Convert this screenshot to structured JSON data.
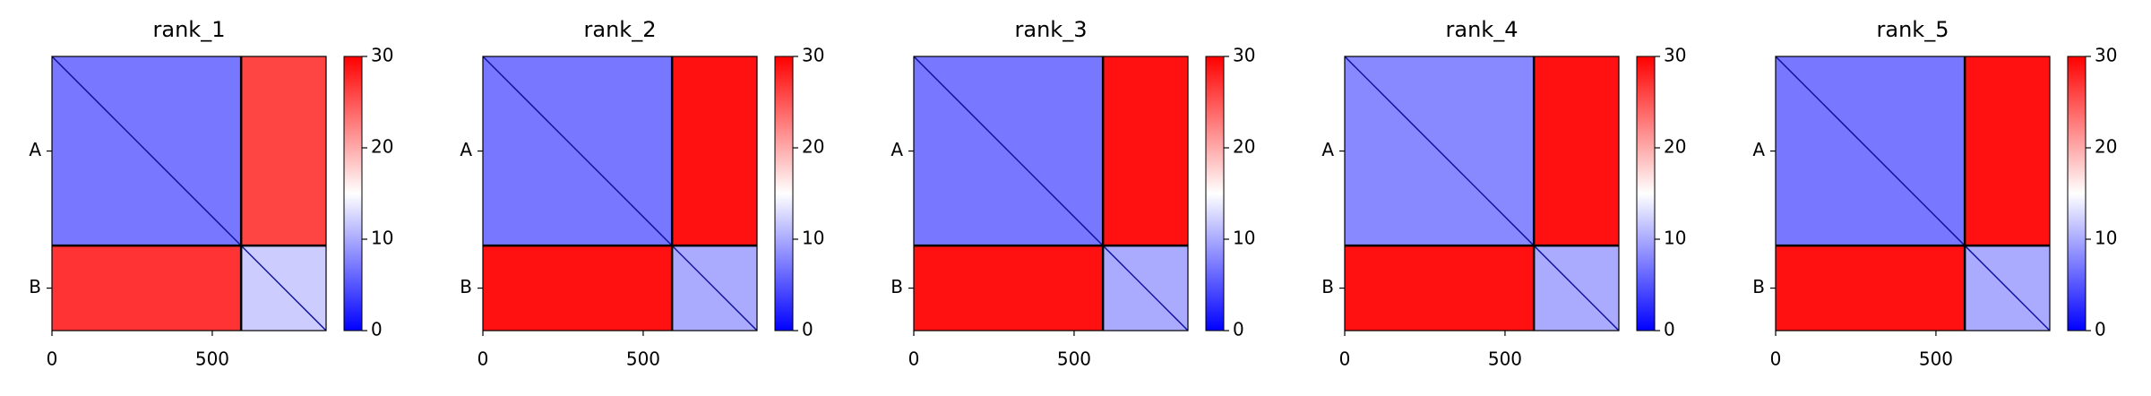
{
  "chart_data": [
    {
      "type": "heatmap",
      "title": "rank_1",
      "categories": [
        "A",
        "B"
      ],
      "bounds": [
        0,
        590,
        855
      ],
      "values": [
        [
          7,
          26
        ],
        [
          27,
          12
        ]
      ],
      "xlim": [
        0,
        855
      ],
      "xticks": [
        0,
        500
      ],
      "clim": [
        0,
        30
      ],
      "cticks": [
        0,
        10,
        20,
        30
      ],
      "colormap": "bwr"
    },
    {
      "type": "heatmap",
      "title": "rank_2",
      "categories": [
        "A",
        "B"
      ],
      "bounds": [
        0,
        590,
        855
      ],
      "values": [
        [
          7,
          29
        ],
        [
          29,
          10
        ]
      ],
      "xlim": [
        0,
        855
      ],
      "xticks": [
        0,
        500
      ],
      "clim": [
        0,
        30
      ],
      "cticks": [
        0,
        10,
        20,
        30
      ],
      "colormap": "bwr"
    },
    {
      "type": "heatmap",
      "title": "rank_3",
      "categories": [
        "A",
        "B"
      ],
      "bounds": [
        0,
        590,
        855
      ],
      "values": [
        [
          7,
          29
        ],
        [
          29,
          10
        ]
      ],
      "xlim": [
        0,
        855
      ],
      "xticks": [
        0,
        500
      ],
      "clim": [
        0,
        30
      ],
      "cticks": [
        0,
        10,
        20,
        30
      ],
      "colormap": "bwr"
    },
    {
      "type": "heatmap",
      "title": "rank_4",
      "categories": [
        "A",
        "B"
      ],
      "bounds": [
        0,
        590,
        855
      ],
      "values": [
        [
          8,
          29
        ],
        [
          29,
          10
        ]
      ],
      "xlim": [
        0,
        855
      ],
      "xticks": [
        0,
        500
      ],
      "clim": [
        0,
        30
      ],
      "cticks": [
        0,
        10,
        20,
        30
      ],
      "colormap": "bwr"
    },
    {
      "type": "heatmap",
      "title": "rank_5",
      "categories": [
        "A",
        "B"
      ],
      "bounds": [
        0,
        590,
        855
      ],
      "values": [
        [
          7,
          29
        ],
        [
          29,
          10
        ]
      ],
      "xlim": [
        0,
        855
      ],
      "xticks": [
        0,
        500
      ],
      "clim": [
        0,
        30
      ],
      "cticks": [
        0,
        10,
        20,
        30
      ],
      "colormap": "bwr"
    }
  ]
}
